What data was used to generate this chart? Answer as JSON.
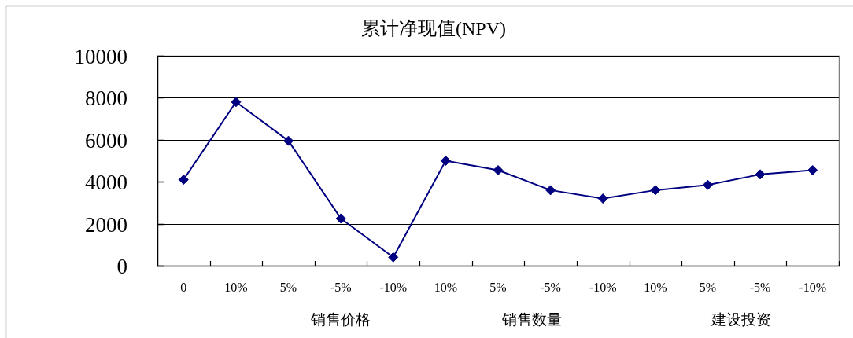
{
  "chart_data": {
    "type": "line",
    "title": "累计净现值(NPV)",
    "categories": [
      "0",
      "10%",
      "5%",
      "-5%",
      "-10%",
      "10%",
      "5%",
      "-5%",
      "-10%",
      "10%",
      "5%",
      "-5%",
      "-10%"
    ],
    "series": [
      {
        "color": "#000080",
        "values": [
          4100,
          7800,
          5950,
          2250,
          400,
          5000,
          4550,
          3600,
          3200,
          3600,
          3850,
          4350,
          4550
        ]
      }
    ],
    "ylim": [
      0,
      10000
    ],
    "yticks": [
      0,
      2000,
      4000,
      6000,
      8000,
      10000
    ],
    "grid": "y",
    "marker": "diamond",
    "line_style": "solid",
    "annotations": [
      "销售价格",
      "销售数量",
      "建设投资"
    ]
  }
}
